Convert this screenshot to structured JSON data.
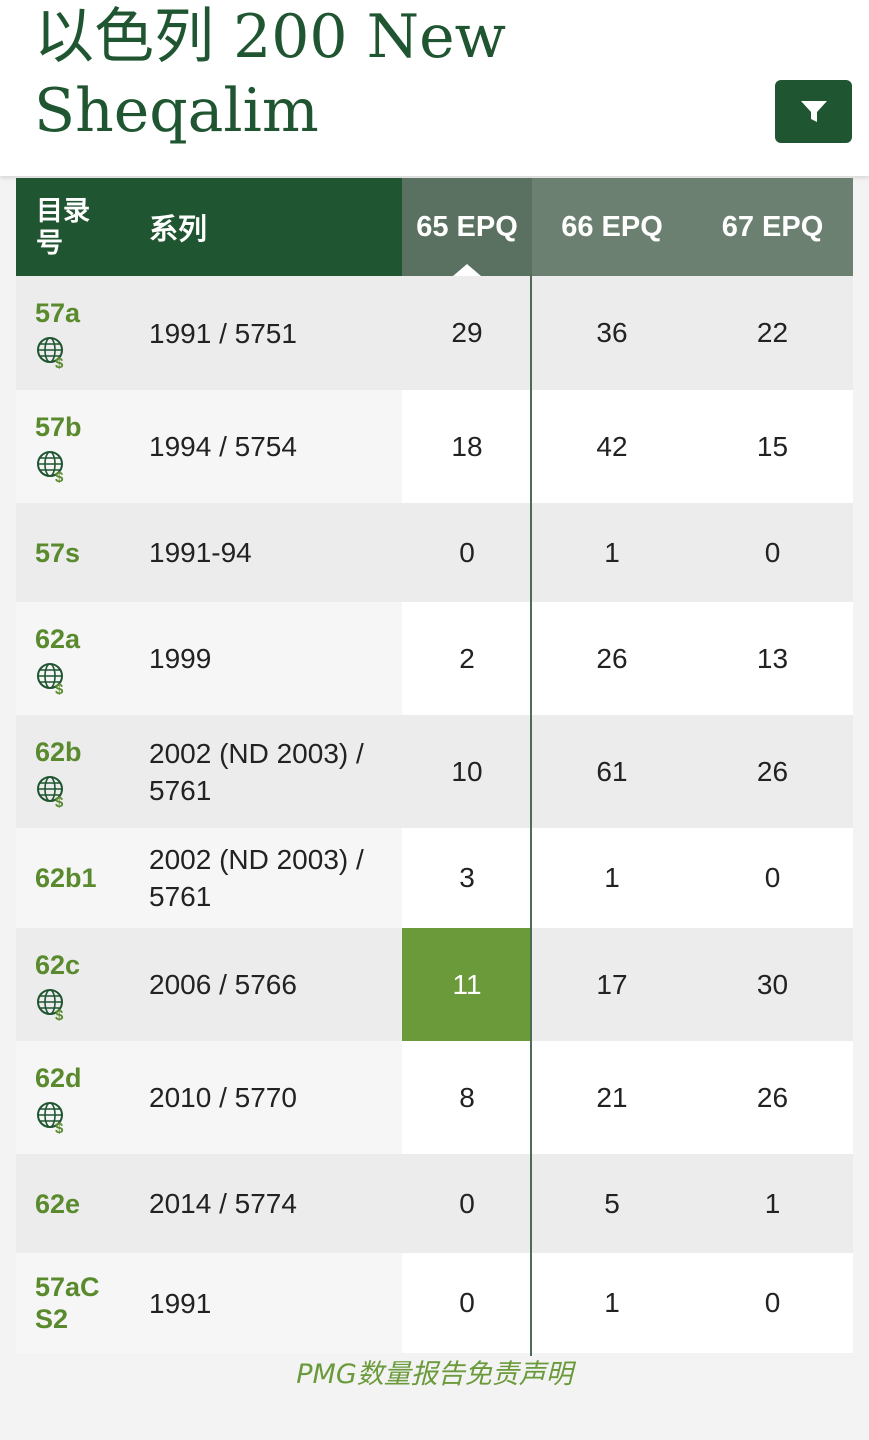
{
  "header": {
    "title_line1": "以色列 200 New",
    "title_line2": "Sheqalim",
    "filter_icon": "filter-icon"
  },
  "table": {
    "columns": {
      "catalog": "目录号",
      "series": "系列",
      "g65": "65 EPQ",
      "g66": "66 EPQ",
      "g67": "67 EPQ"
    },
    "rows": [
      {
        "cat": "57a",
        "series": "1991 / 5751",
        "g65": "29",
        "g66": "36",
        "g67": "22"
      },
      {
        "cat": "57b",
        "series": "1994 / 5754",
        "g65": "18",
        "g66": "42",
        "g67": "15"
      },
      {
        "cat": "57s",
        "series": "1991-94",
        "g65": "0",
        "g66": "1",
        "g67": "0"
      },
      {
        "cat": "62a",
        "series": "1999",
        "g65": "2",
        "g66": "26",
        "g67": "13"
      },
      {
        "cat": "62b",
        "series": "2002 (ND 2003) / 5761",
        "g65": "10",
        "g66": "61",
        "g67": "26"
      },
      {
        "cat": "62b1",
        "series": "2002 (ND 2003) / 5761",
        "g65": "3",
        "g66": "1",
        "g67": "0"
      },
      {
        "cat": "62c",
        "series": "2006 / 5766",
        "g65": "11",
        "g66": "17",
        "g67": "30"
      },
      {
        "cat": "62d",
        "series": "2010 / 5770",
        "g65": "8",
        "g66": "21",
        "g67": "26"
      },
      {
        "cat": "62e",
        "series": "2014 / 5774",
        "g65": "0",
        "g66": "5",
        "g67": "1"
      },
      {
        "cat": "57aC S2",
        "series": "1991",
        "g65": "0",
        "g66": "1",
        "g67": "0"
      }
    ]
  },
  "disclaimer": "PMG数量报告免责声明",
  "colors": {
    "brand_green": "#1f5530",
    "link_green": "#5a8a2e",
    "highlight": "#6a9a3a"
  }
}
